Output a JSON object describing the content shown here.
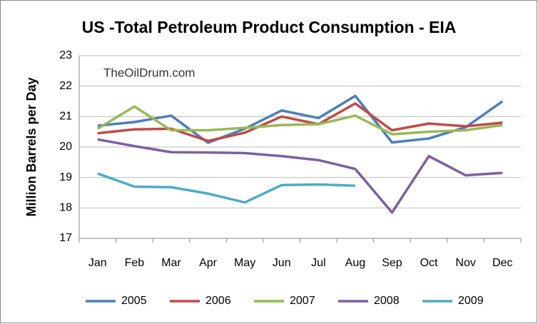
{
  "chart_data": {
    "type": "line",
    "title": "US -Total Petroleum Product Consumption - EIA",
    "y_label": "Million Barrels per Day",
    "annotation": "TheOilDrum.com",
    "categories": [
      "Jan",
      "Feb",
      "Mar",
      "Apr",
      "May",
      "Jun",
      "Jul",
      "Aug",
      "Sep",
      "Oct",
      "Nov",
      "Dec"
    ],
    "series": [
      {
        "name": "2005",
        "color": "#4a7ebb",
        "values": [
          20.7,
          20.82,
          21.03,
          20.14,
          20.6,
          21.2,
          20.95,
          21.68,
          20.15,
          20.28,
          20.65,
          21.5
        ]
      },
      {
        "name": "2006",
        "color": "#be4b48",
        "values": [
          20.45,
          20.58,
          20.6,
          20.2,
          20.47,
          21.0,
          20.75,
          21.43,
          20.55,
          20.77,
          20.68,
          20.8
        ]
      },
      {
        "name": "2007",
        "color": "#98b954",
        "values": [
          20.6,
          21.33,
          20.55,
          20.55,
          20.63,
          20.72,
          20.75,
          21.03,
          20.42,
          20.5,
          20.55,
          20.72
        ]
      },
      {
        "name": "2008",
        "color": "#7d60a0",
        "values": [
          20.25,
          20.03,
          19.83,
          19.82,
          19.8,
          19.7,
          19.57,
          19.28,
          17.85,
          19.7,
          19.07,
          19.15
        ]
      },
      {
        "name": "2009",
        "color": "#4bacc6",
        "values": [
          19.13,
          18.7,
          18.68,
          18.47,
          18.18,
          18.75,
          18.77,
          18.73,
          null,
          null,
          null,
          null
        ]
      }
    ],
    "ylim": [
      17,
      23
    ],
    "yticks": [
      17,
      18,
      19,
      20,
      21,
      22,
      23
    ],
    "grid": true,
    "legend": "bottom"
  }
}
